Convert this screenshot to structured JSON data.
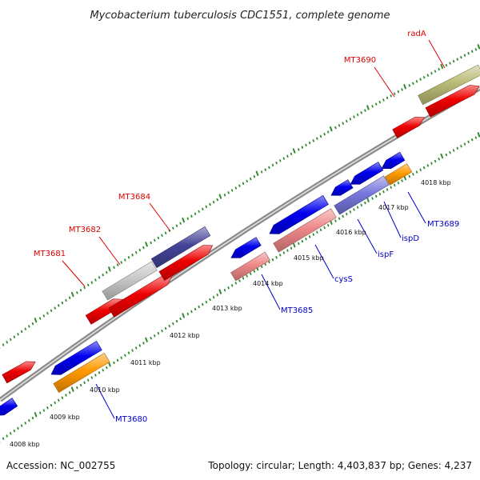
{
  "title": "Mycobacterium tuberculosis CDC1551, complete genome",
  "footer": {
    "accession": "Accession: NC_002755",
    "summary": "Topology: circular; Length: 4,403,837 bp; Genes: 4,237"
  },
  "colors": {
    "backbone": "#8c8c8c",
    "tick_dots": "#2e8b2e",
    "label_forward": "#dd0000",
    "label_reverse": "#0000cc",
    "red": "#ee0000",
    "blue": "#0000ee",
    "pink": "#ee8888",
    "orange": "#ff9900",
    "gray": "#c8c8c8",
    "slate": "#444499",
    "lavender": "#7777dd",
    "olive": "#bbbb77"
  },
  "scale_ticks": [
    "4008 kbp",
    "4009 kbp",
    "4010 kbp",
    "4011 kbp",
    "4012 kbp",
    "4013 kbp",
    "4014 kbp",
    "4015 kbp",
    "4016 kbp",
    "4017 kbp",
    "4018 kbp"
  ],
  "features_forward": [
    {
      "color": "red"
    },
    {
      "color": "red"
    },
    {
      "color": "gray",
      "label": "MT3682"
    },
    {
      "color": "red",
      "label": "MT3681"
    },
    {
      "color": "slate",
      "label": "MT3684"
    },
    {
      "color": "red"
    },
    {
      "color": "red",
      "label": "MT3690"
    },
    {
      "color": "olive",
      "label": "radA"
    },
    {
      "color": "red"
    }
  ],
  "features_reverse": [
    {
      "color": "blue"
    },
    {
      "color": "blue"
    },
    {
      "color": "orange",
      "label": "MT3680"
    },
    {
      "color": "blue"
    },
    {
      "color": "pink",
      "label": "MT3685"
    },
    {
      "color": "blue"
    },
    {
      "color": "pink",
      "label": "cysS"
    },
    {
      "color": "blue"
    },
    {
      "color": "lavender",
      "label": "ispF"
    },
    {
      "color": "blue"
    },
    {
      "color": "lavender",
      "label": "ispD"
    },
    {
      "color": "blue"
    },
    {
      "color": "orange",
      "label": "MT3689"
    },
    {
      "color": "blue"
    }
  ]
}
